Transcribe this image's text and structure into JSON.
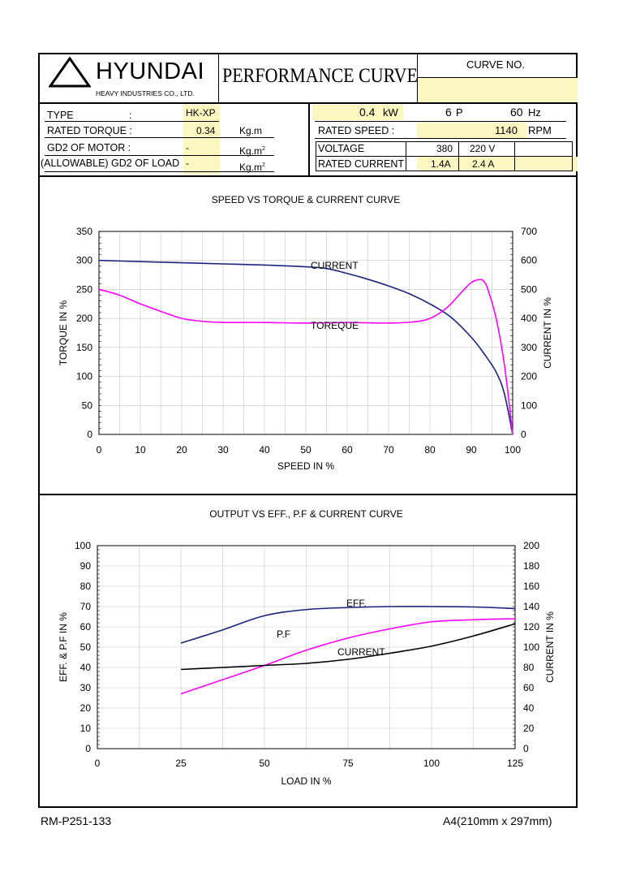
{
  "header": {
    "brand": "HYUNDAI",
    "company": "HEAVY INDUSTRIES CO., LTD.",
    "doc_title": "PERFORMANCE CURVE",
    "curve_no_label": "CURVE NO.",
    "curve_no_value": ""
  },
  "spec": {
    "type_label": "TYPE",
    "type_colon": ":",
    "type_value": "HK-XP",
    "rated_torque_label": "RATED TORQUE :",
    "rated_torque_value": "0.34",
    "rated_torque_unit": "Kg.m",
    "gd2_motor_label": "GD2 OF MOTOR :",
    "gd2_motor_value": "-",
    "gd2_motor_unit": "Kg.m",
    "gd2_load_label": "(ALLOWABLE) GD2 OF LOAD",
    "gd2_load_value": "-",
    "gd2_load_unit": "Kg.m",
    "unit_sup": "2",
    "power_value": "0.4",
    "power_unit": "kW",
    "poles_value": "6",
    "poles_unit": "P",
    "freq_value": "60",
    "freq_unit": "Hz",
    "rated_speed_label": "RATED   SPEED :",
    "rated_speed_value": "1140",
    "rated_speed_unit": "RPM",
    "voltage_label": "VOLTAGE",
    "voltage_1": "380",
    "voltage_2": "220 V",
    "current_label": "RATED CURRENT",
    "current_1": "1.4A",
    "current_2": "2.4 A"
  },
  "footer": {
    "doc_no": "RM-P251-133",
    "paper": "A4(210mm x 297mm)"
  },
  "colors": {
    "current": "#1a237e",
    "torque": "#ff00ff",
    "eff": "#1a237e",
    "pf": "#ff00ff",
    "current2": "#000000",
    "highlight": "#fcf6c0"
  },
  "chart_data": [
    {
      "type": "line",
      "title": "SPEED VS TORQUE & CURRENT CURVE",
      "xlabel": "SPEED IN %",
      "ylabel": "TORQUE IN %",
      "y2label": "CURRENT IN %",
      "xlim": [
        0,
        100
      ],
      "ylim": [
        0,
        350
      ],
      "y2lim": [
        0,
        700
      ],
      "xticks": [
        0,
        10,
        20,
        30,
        40,
        50,
        60,
        70,
        80,
        90,
        100
      ],
      "yticks": [
        0,
        50,
        100,
        150,
        200,
        250,
        300,
        350
      ],
      "y2ticks": [
        0,
        100,
        200,
        300,
        400,
        500,
        600,
        700
      ],
      "grid": true,
      "series": [
        {
          "name": "CURRENT",
          "axis": "right",
          "x": [
            0,
            10,
            20,
            30,
            40,
            50,
            55,
            60,
            65,
            70,
            75,
            80,
            85,
            90,
            93,
            96,
            98,
            100
          ],
          "y": [
            600,
            596,
            592,
            588,
            584,
            578,
            572,
            555,
            535,
            512,
            485,
            450,
            405,
            335,
            280,
            215,
            140,
            0
          ]
        },
        {
          "name": "TOREQUE",
          "axis": "left",
          "x": [
            0,
            5,
            10,
            15,
            20,
            25,
            30,
            40,
            50,
            60,
            70,
            76,
            80,
            84,
            88,
            90,
            92,
            93,
            94,
            96,
            98,
            100
          ],
          "y": [
            250,
            240,
            225,
            212,
            200,
            195,
            193,
            193,
            192,
            193,
            192,
            194,
            200,
            218,
            248,
            262,
            267,
            264,
            250,
            200,
            120,
            0
          ]
        }
      ]
    },
    {
      "type": "line",
      "title": "OUTPUT VS EFF., P.F & CURRENT CURVE",
      "xlabel": "LOAD IN %",
      "ylabel": "EFF. & P.F IN %",
      "y2label": "CURRENT IN %",
      "xlim": [
        0,
        125
      ],
      "ylim": [
        0,
        100
      ],
      "y2lim": [
        0,
        200
      ],
      "xticks": [
        0,
        25,
        50,
        75,
        100,
        125
      ],
      "yticks": [
        0,
        10,
        20,
        30,
        40,
        50,
        60,
        70,
        80,
        90,
        100
      ],
      "y2ticks": [
        0,
        20,
        40,
        60,
        80,
        100,
        120,
        140,
        160,
        180,
        200
      ],
      "grid": true,
      "series": [
        {
          "name": "EFF.",
          "axis": "left",
          "x": [
            25,
            37.5,
            50,
            62.5,
            75,
            87.5,
            100,
            112.5,
            125
          ],
          "y": [
            52,
            58.5,
            65.5,
            68.5,
            69.5,
            70,
            70,
            69.8,
            69
          ]
        },
        {
          "name": "P.F",
          "axis": "left",
          "x": [
            25,
            37.5,
            50,
            62.5,
            75,
            87.5,
            100,
            112.5,
            125
          ],
          "y": [
            27,
            34,
            41,
            48.5,
            54.5,
            59,
            62.5,
            63.5,
            64
          ]
        },
        {
          "name": "CURRENT",
          "axis": "right",
          "x": [
            25,
            37.5,
            50,
            62.5,
            75,
            87.5,
            100,
            112.5,
            125
          ],
          "y": [
            78,
            80,
            82,
            84,
            88,
            94,
            101,
            111,
            123
          ]
        }
      ]
    }
  ]
}
